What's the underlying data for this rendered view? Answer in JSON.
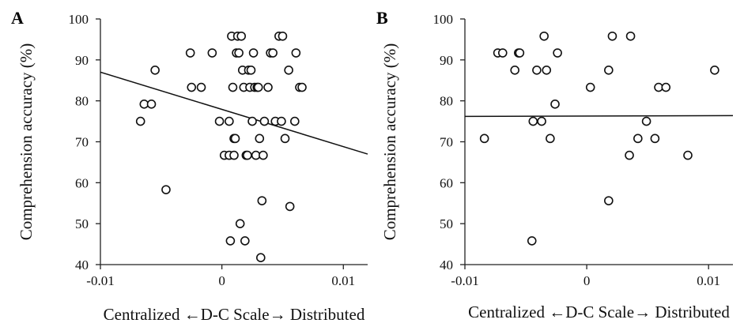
{
  "chart_data": [
    {
      "type": "scatter",
      "panel_label": "A",
      "xlabel": "Centralized ←D-C Scale→ Distributed",
      "ylabel": "Comprehension accuracy (%)",
      "xlim": [
        -0.01,
        0.012
      ],
      "ylim": [
        40,
        100
      ],
      "xticks": [
        -0.01,
        0,
        0.01
      ],
      "xtick_labels": [
        "-0.01",
        "0",
        "0.01"
      ],
      "yticks": [
        40,
        50,
        60,
        70,
        80,
        90,
        100
      ],
      "ytick_labels": [
        "40",
        "50",
        "60",
        "70",
        "80",
        "90",
        "100"
      ],
      "grid": false,
      "trendline": {
        "x": [
          -0.01,
          0.012
        ],
        "y": [
          87,
          67
        ]
      },
      "points": [
        {
          "x": -0.0067,
          "y": 75.0
        },
        {
          "x": -0.0064,
          "y": 79.2
        },
        {
          "x": -0.0058,
          "y": 79.2
        },
        {
          "x": -0.0055,
          "y": 87.5
        },
        {
          "x": -0.0046,
          "y": 58.3
        },
        {
          "x": -0.0026,
          "y": 91.7
        },
        {
          "x": -0.0025,
          "y": 83.3
        },
        {
          "x": -0.0017,
          "y": 83.3
        },
        {
          "x": -0.0008,
          "y": 91.7
        },
        {
          "x": -0.0002,
          "y": 75.0
        },
        {
          "x": 0.0002,
          "y": 66.7
        },
        {
          "x": 0.0006,
          "y": 75.0
        },
        {
          "x": 0.0006,
          "y": 66.7
        },
        {
          "x": 0.0007,
          "y": 45.8
        },
        {
          "x": 0.0008,
          "y": 95.8
        },
        {
          "x": 0.0009,
          "y": 83.3
        },
        {
          "x": 0.001,
          "y": 66.7
        },
        {
          "x": 0.001,
          "y": 70.8
        },
        {
          "x": 0.0011,
          "y": 70.8
        },
        {
          "x": 0.0012,
          "y": 91.7
        },
        {
          "x": 0.0013,
          "y": 95.8
        },
        {
          "x": 0.0014,
          "y": 91.7
        },
        {
          "x": 0.0015,
          "y": 50.0
        },
        {
          "x": 0.0016,
          "y": 95.8
        },
        {
          "x": 0.0017,
          "y": 87.5
        },
        {
          "x": 0.0018,
          "y": 83.3
        },
        {
          "x": 0.0019,
          "y": 45.8
        },
        {
          "x": 0.002,
          "y": 66.7
        },
        {
          "x": 0.0021,
          "y": 66.7
        },
        {
          "x": 0.0022,
          "y": 87.5
        },
        {
          "x": 0.0023,
          "y": 83.3
        },
        {
          "x": 0.0024,
          "y": 87.5
        },
        {
          "x": 0.0025,
          "y": 75.0
        },
        {
          "x": 0.0026,
          "y": 91.7
        },
        {
          "x": 0.0027,
          "y": 83.3
        },
        {
          "x": 0.0028,
          "y": 66.7
        },
        {
          "x": 0.0029,
          "y": 83.3
        },
        {
          "x": 0.003,
          "y": 83.3
        },
        {
          "x": 0.0031,
          "y": 70.8
        },
        {
          "x": 0.0032,
          "y": 41.7
        },
        {
          "x": 0.0033,
          "y": 55.6
        },
        {
          "x": 0.0034,
          "y": 66.7
        },
        {
          "x": 0.0035,
          "y": 75.0
        },
        {
          "x": 0.0038,
          "y": 83.3
        },
        {
          "x": 0.004,
          "y": 91.7
        },
        {
          "x": 0.0042,
          "y": 91.7
        },
        {
          "x": 0.0044,
          "y": 75.0
        },
        {
          "x": 0.0047,
          "y": 95.8
        },
        {
          "x": 0.0049,
          "y": 75.0
        },
        {
          "x": 0.005,
          "y": 95.8
        },
        {
          "x": 0.0052,
          "y": 70.8
        },
        {
          "x": 0.0055,
          "y": 87.5
        },
        {
          "x": 0.0056,
          "y": 54.2
        },
        {
          "x": 0.006,
          "y": 75.0
        },
        {
          "x": 0.0061,
          "y": 91.7
        },
        {
          "x": 0.0064,
          "y": 83.3
        },
        {
          "x": 0.0066,
          "y": 83.3
        }
      ]
    },
    {
      "type": "scatter",
      "panel_label": "B",
      "xlabel": "Centralized ←D-C Scale→ Distributed",
      "ylabel": "Comprehension accuracy (%)",
      "xlim": [
        -0.01,
        0.012
      ],
      "ylim": [
        40,
        100
      ],
      "xticks": [
        -0.01,
        0,
        0.01
      ],
      "xtick_labels": [
        "-0.01",
        "0",
        "0.01"
      ],
      "yticks": [
        40,
        50,
        60,
        70,
        80,
        90,
        100
      ],
      "ytick_labels": [
        "40",
        "50",
        "60",
        "70",
        "80",
        "90",
        "100"
      ],
      "grid": false,
      "trendline": {
        "x": [
          -0.01,
          0.012
        ],
        "y": [
          76.2,
          76.4
        ]
      },
      "points": [
        {
          "x": -0.0084,
          "y": 70.8
        },
        {
          "x": -0.0073,
          "y": 91.7
        },
        {
          "x": -0.0069,
          "y": 91.7
        },
        {
          "x": -0.0059,
          "y": 87.5
        },
        {
          "x": -0.0056,
          "y": 91.7
        },
        {
          "x": -0.0055,
          "y": 91.7
        },
        {
          "x": -0.0045,
          "y": 45.8
        },
        {
          "x": -0.0044,
          "y": 75.0
        },
        {
          "x": -0.0041,
          "y": 87.5
        },
        {
          "x": -0.0037,
          "y": 75.0
        },
        {
          "x": -0.0035,
          "y": 95.8
        },
        {
          "x": -0.0033,
          "y": 87.5
        },
        {
          "x": -0.003,
          "y": 70.8
        },
        {
          "x": -0.0026,
          "y": 79.2
        },
        {
          "x": -0.0024,
          "y": 91.7
        },
        {
          "x": 0.0003,
          "y": 83.3
        },
        {
          "x": 0.0018,
          "y": 55.6
        },
        {
          "x": 0.0018,
          "y": 87.5
        },
        {
          "x": 0.0021,
          "y": 95.8
        },
        {
          "x": 0.0035,
          "y": 66.7
        },
        {
          "x": 0.0036,
          "y": 95.8
        },
        {
          "x": 0.0042,
          "y": 70.8
        },
        {
          "x": 0.0049,
          "y": 75.0
        },
        {
          "x": 0.0056,
          "y": 70.8
        },
        {
          "x": 0.0059,
          "y": 83.3
        },
        {
          "x": 0.0065,
          "y": 83.3
        },
        {
          "x": 0.0083,
          "y": 66.7
        },
        {
          "x": 0.0105,
          "y": 87.5
        }
      ]
    }
  ]
}
